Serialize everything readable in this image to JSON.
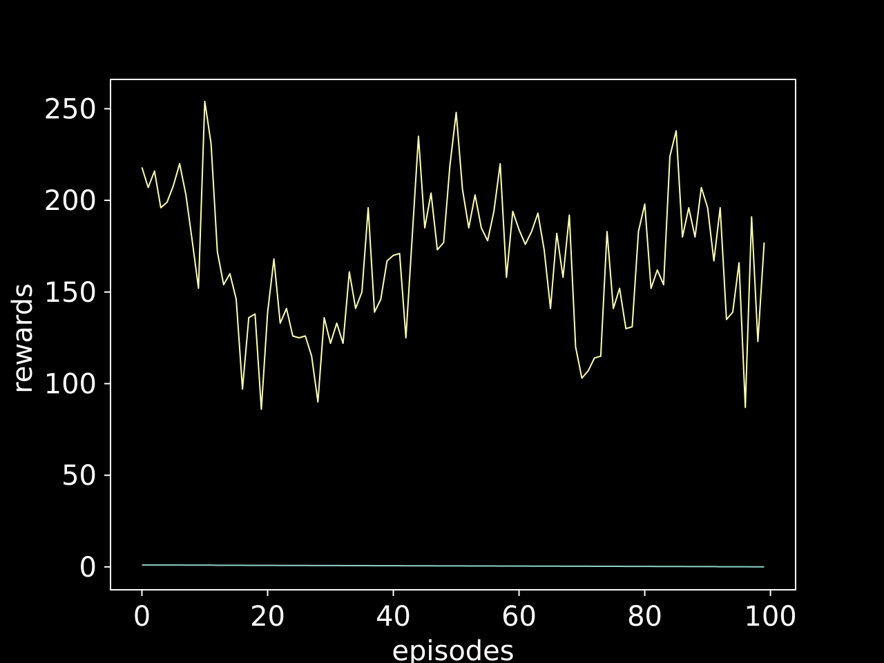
{
  "chart_data": {
    "type": "line",
    "title": "",
    "xlabel": "episodes",
    "ylabel": "rewards",
    "xlim": [
      -5,
      104
    ],
    "ylim": [
      -12.5,
      266
    ],
    "grid": false,
    "xticks": [
      0,
      20,
      40,
      60,
      80,
      100
    ],
    "yticks": [
      0,
      50,
      100,
      150,
      200,
      250
    ],
    "x": [
      0,
      1,
      2,
      3,
      4,
      5,
      6,
      7,
      8,
      9,
      10,
      11,
      12,
      13,
      14,
      15,
      16,
      17,
      18,
      19,
      20,
      21,
      22,
      23,
      24,
      25,
      26,
      27,
      28,
      29,
      30,
      31,
      32,
      33,
      34,
      35,
      36,
      37,
      38,
      39,
      40,
      41,
      42,
      43,
      44,
      45,
      46,
      47,
      48,
      49,
      50,
      51,
      52,
      53,
      54,
      55,
      56,
      57,
      58,
      59,
      60,
      61,
      62,
      63,
      64,
      65,
      66,
      67,
      68,
      69,
      70,
      71,
      72,
      73,
      74,
      75,
      76,
      77,
      78,
      79,
      80,
      81,
      82,
      83,
      84,
      85,
      86,
      87,
      88,
      89,
      90,
      91,
      92,
      93,
      94,
      95,
      96,
      97,
      98,
      99
    ],
    "series": [
      {
        "color": "#ffffb3",
        "values": [
          218,
          207,
          216,
          196,
          199,
          208,
          220,
          203,
          178,
          152,
          254,
          231,
          172,
          154,
          160,
          146,
          97,
          136,
          138,
          86,
          139,
          168,
          133,
          141,
          126,
          125,
          126,
          115,
          90,
          136,
          122,
          133,
          122,
          161,
          141,
          150,
          196,
          139,
          146,
          167,
          170,
          171,
          125,
          180,
          235,
          185,
          204,
          173,
          177,
          219,
          248,
          206,
          185,
          203,
          185,
          178,
          194,
          220,
          158,
          194,
          184,
          176,
          183,
          193,
          173,
          141,
          182,
          158,
          192,
          120,
          103,
          107,
          114,
          115,
          183,
          141,
          152,
          130,
          131,
          183,
          198,
          152,
          162,
          154,
          224,
          238,
          180,
          196,
          180,
          207,
          196,
          167,
          196,
          135,
          139,
          166,
          87,
          191,
          123,
          177
        ]
      },
      {
        "color": "#8dd3c7",
        "values": [
          1.0,
          1.0,
          1.0,
          1.0,
          1.0,
          1.0,
          1.0,
          0.95,
          0.95,
          0.95,
          0.95,
          0.95,
          0.9,
          0.9,
          0.9,
          0.9,
          0.9,
          0.85,
          0.85,
          0.85,
          0.85,
          0.85,
          0.8,
          0.8,
          0.8,
          0.8,
          0.8,
          0.75,
          0.75,
          0.75,
          0.75,
          0.75,
          0.7,
          0.7,
          0.7,
          0.7,
          0.7,
          0.65,
          0.65,
          0.65,
          0.65,
          0.65,
          0.6,
          0.6,
          0.6,
          0.6,
          0.6,
          0.55,
          0.55,
          0.55,
          0.55,
          0.55,
          0.5,
          0.5,
          0.5,
          0.5,
          0.5,
          0.45,
          0.45,
          0.45,
          0.45,
          0.45,
          0.4,
          0.4,
          0.4,
          0.4,
          0.4,
          0.35,
          0.35,
          0.35,
          0.35,
          0.35,
          0.3,
          0.3,
          0.3,
          0.3,
          0.3,
          0.25,
          0.25,
          0.25,
          0.25,
          0.25,
          0.2,
          0.2,
          0.2,
          0.2,
          0.2,
          0.15,
          0.15,
          0.15,
          0.15,
          0.15,
          0.1,
          0.1,
          0.1,
          0.1,
          0.1,
          0.05,
          0.05,
          0.05
        ]
      }
    ]
  }
}
